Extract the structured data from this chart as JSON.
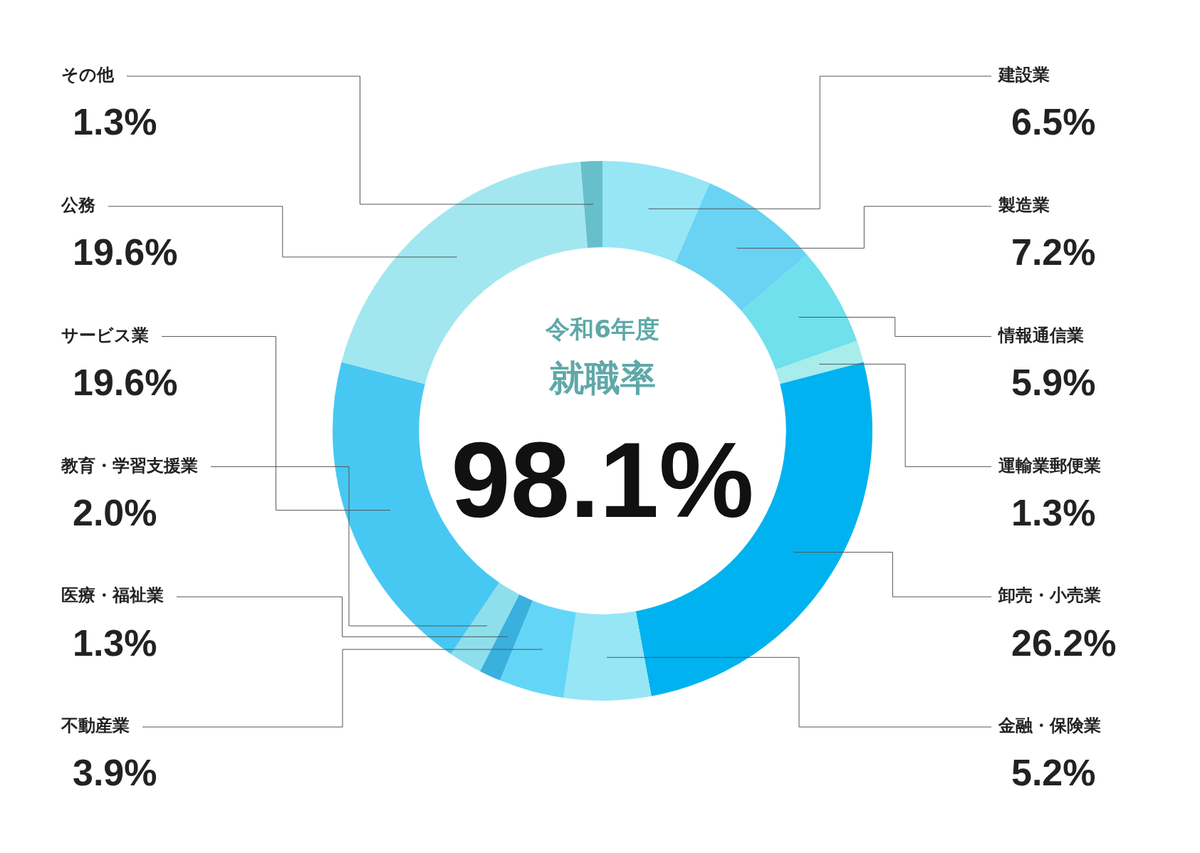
{
  "chart_data": {
    "type": "donut",
    "title": "令和6年度",
    "subtitle": "就職率",
    "annotations": [
      "98.1%"
    ],
    "categories": [
      "建設業",
      "製造業",
      "情報通信業",
      "運輸業郵便業",
      "卸売・小売業",
      "金融・保険業",
      "不動産業",
      "医療・福祉業",
      "教育・学習支援業",
      "サービス業",
      "公務",
      "その他"
    ],
    "values": [
      6.5,
      7.2,
      5.9,
      1.3,
      26.2,
      5.2,
      3.9,
      1.3,
      2.0,
      19.6,
      19.6,
      1.3
    ],
    "value_labels": [
      "6.5%",
      "7.2%",
      "5.9%",
      "1.3%",
      "26.2%",
      "5.2%",
      "3.9%",
      "1.3%",
      "2.0%",
      "19.6%",
      "19.6%",
      "1.3%"
    ],
    "colors": [
      "#97e6f5",
      "#6ad3f3",
      "#6fe0ec",
      "#a8ecec",
      "#00b2ef",
      "#97e6f5",
      "#63d6f8",
      "#3ab0df",
      "#8edfec",
      "#47c8f2",
      "#a2e7f0",
      "#67bfcc"
    ]
  }
}
